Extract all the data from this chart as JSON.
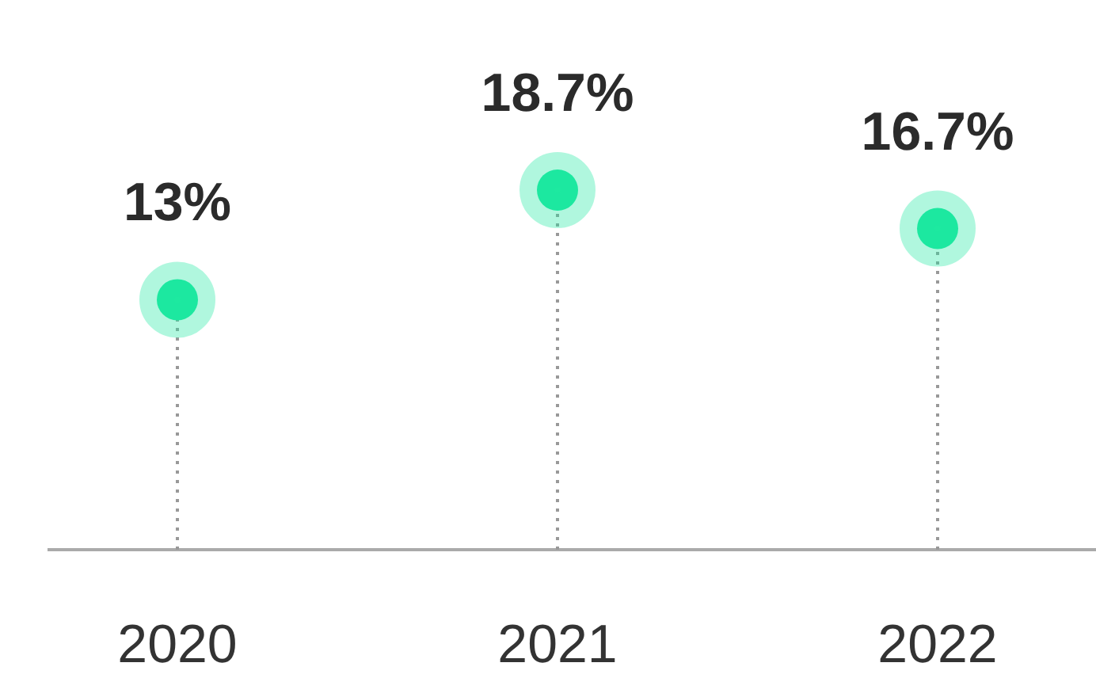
{
  "chart_data": {
    "type": "lollipop",
    "relative": false,
    "categories": [
      "2020",
      "2021",
      "2022"
    ],
    "values": [
      13,
      18.7,
      16.7
    ],
    "value_labels": [
      "13%",
      "18.7%",
      "16.7%"
    ],
    "color": "#1de9a0",
    "line_style": "dotted",
    "marker": "circle"
  }
}
